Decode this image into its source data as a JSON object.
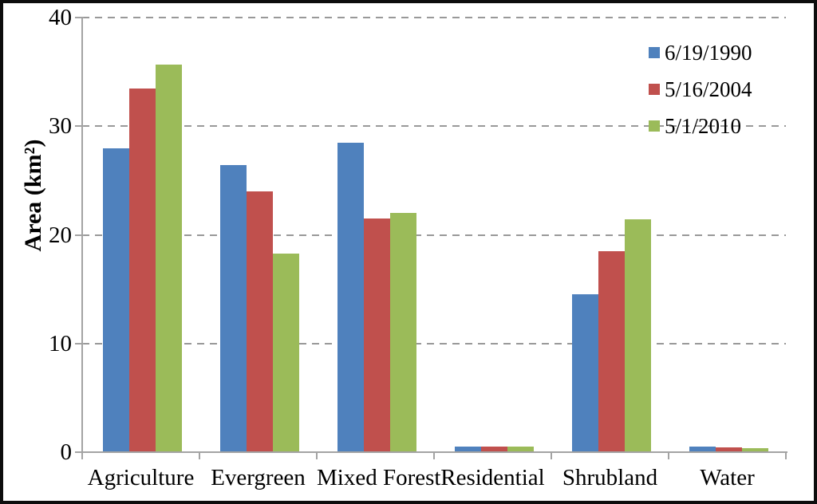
{
  "chart_data": {
    "type": "bar",
    "title": "",
    "categories": [
      "Agriculture",
      "Evergreen",
      "Mixed Forest",
      "Residential",
      "Shrubland",
      "Water"
    ],
    "series": [
      {
        "name": "6/19/1990",
        "color": "#4F81BD",
        "values": [
          28.0,
          26.4,
          28.5,
          0.5,
          14.5,
          0.55
        ]
      },
      {
        "name": "5/16/2004",
        "color": "#C0504D",
        "values": [
          33.5,
          24.0,
          21.5,
          0.5,
          18.5,
          0.45
        ]
      },
      {
        "name": "5/1/2010",
        "color": "#9BBB59",
        "values": [
          35.7,
          18.3,
          22.0,
          0.5,
          21.4,
          0.35
        ]
      }
    ],
    "ylabel": "Area (km²)",
    "xlabel": "",
    "ylim": [
      0,
      40
    ],
    "yticks": [
      0,
      10,
      20,
      30,
      40
    ],
    "grid": "horizontal-dashed",
    "legend_position": "top-right",
    "colors": {
      "axis": "#a3a3a3",
      "gridline": "#999999",
      "text": "#000000",
      "frame_border": "#0d0d0d",
      "background": "#ffffff"
    }
  }
}
